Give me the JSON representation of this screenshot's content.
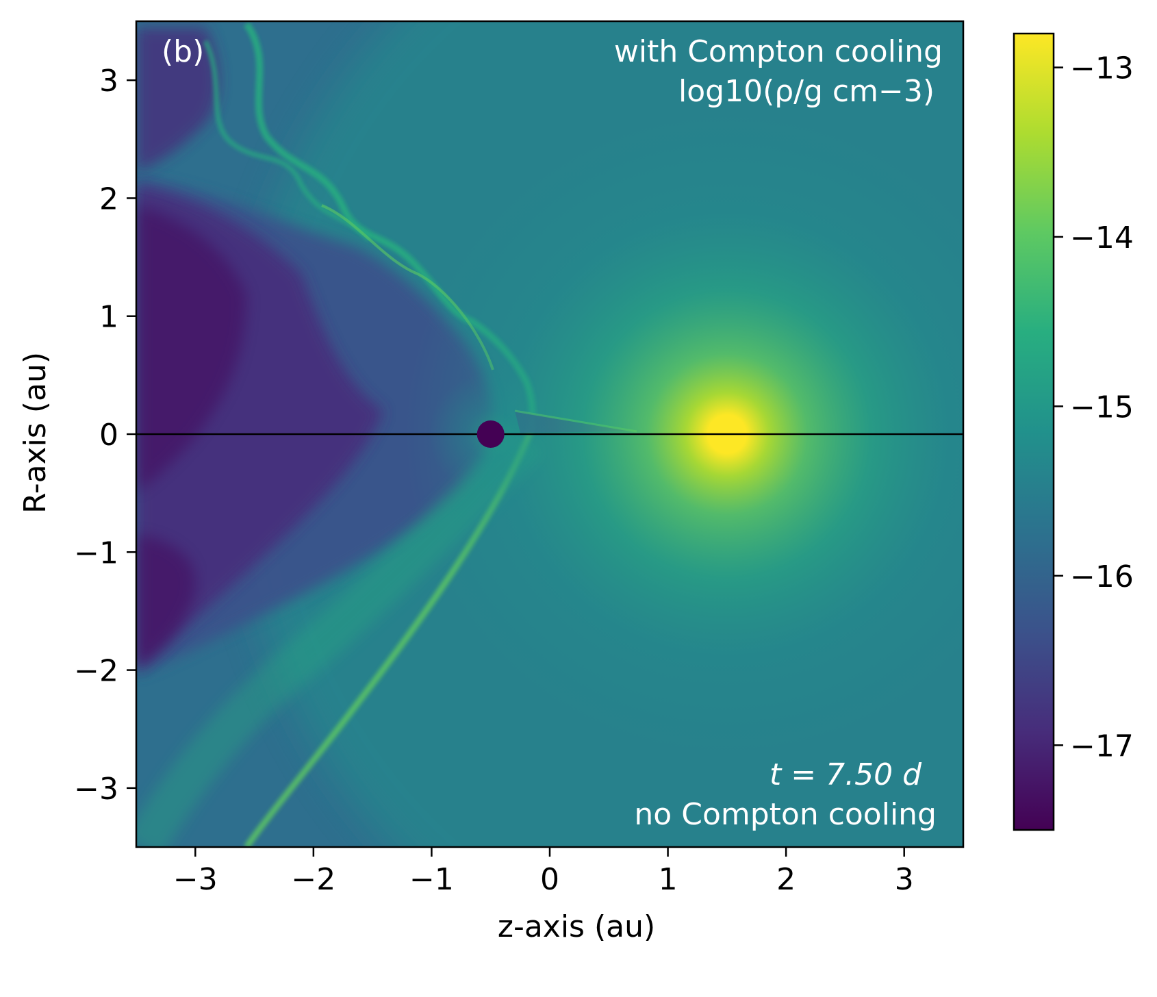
{
  "chart_data": {
    "type": "heatmap",
    "panel_label": "(b)",
    "annotation_top_right_line1": "with Compton cooling",
    "annotation_top_right_line2": "log10(ρ/g cm−3)",
    "annotation_bottom_right_time": "t = 7.50 d",
    "annotation_bottom_right_line2": "no Compton cooling",
    "xlabel": "z-axis (au)",
    "ylabel": "R-axis (au)",
    "xlim": [
      -3.5,
      3.5
    ],
    "ylim": [
      -3.5,
      3.5
    ],
    "xticks": [
      -3,
      -2,
      -1,
      0,
      1,
      2,
      3
    ],
    "xtick_labels": [
      "−3",
      "−2",
      "−1",
      "0",
      "1",
      "2",
      "3"
    ],
    "yticks": [
      -3,
      -2,
      -1,
      0,
      1,
      2,
      3
    ],
    "ytick_labels": [
      "−3",
      "−2",
      "−1",
      "0",
      "1",
      "2",
      "3"
    ],
    "colorbar": {
      "range": [
        -17.5,
        -12.8
      ],
      "ticks": [
        -13,
        -14,
        -15,
        -16,
        -17
      ],
      "tick_labels": [
        "−13",
        "−14",
        "−15",
        "−16",
        "−17"
      ],
      "colormap": "viridis"
    },
    "features": {
      "bright_source_center": [
        1.5,
        0.0
      ],
      "dark_source_center": [
        -0.5,
        0.0
      ],
      "midplane_y": 0
    },
    "colors": {
      "viridis_dark": "#440154",
      "viridis_mid": "#21918c",
      "viridis_bright": "#fde725",
      "midplane_line": "#000000",
      "annotation_text": "#ffffff"
    }
  }
}
